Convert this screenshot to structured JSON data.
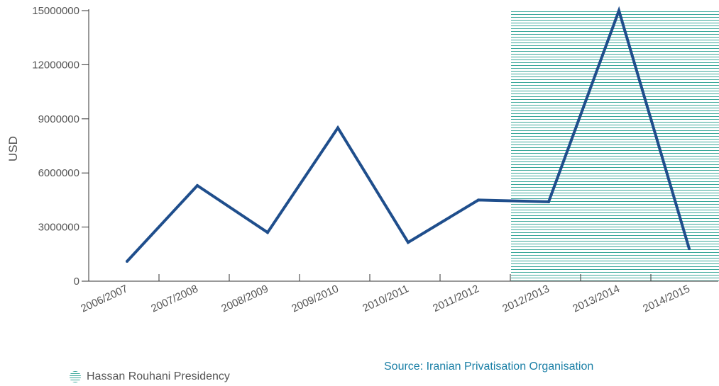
{
  "chart_data": {
    "type": "line",
    "ylabel": "USD",
    "xlabel": "",
    "ylim": [
      0,
      15000000
    ],
    "yticks": [
      0,
      3000000,
      6000000,
      9000000,
      12000000,
      15000000
    ],
    "categories": [
      "2006/2007",
      "2007/2008",
      "2008/2009",
      "2009/2010",
      "2010/2011",
      "2011/2012",
      "2012/2013",
      "2013/2014",
      "2014/2015"
    ],
    "series": [
      {
        "values": [
          1100000,
          5300000,
          2700000,
          8500000,
          2150000,
          4500000,
          4400000,
          15000000,
          1800000
        ],
        "color": "#1f4e8c"
      }
    ],
    "shaded_region": {
      "from": "2012/2013",
      "to": "2014/2015",
      "label": "Hassan Rouhani Presidency",
      "color": "#3aa89a"
    }
  },
  "legend": {
    "label": "Hassan Rouhani Presidency"
  },
  "source": "Source: Iranian Privatisation Organisation"
}
